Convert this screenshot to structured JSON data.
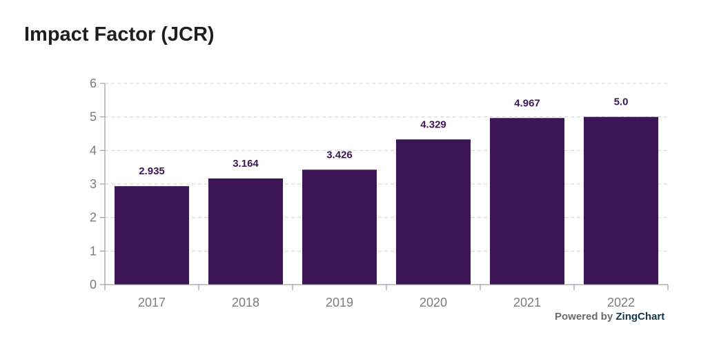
{
  "chart_data": {
    "type": "bar",
    "title": "Impact Factor (JCR)",
    "xlabel": "",
    "ylabel": "",
    "categories": [
      "2017",
      "2018",
      "2019",
      "2020",
      "2021",
      "2022"
    ],
    "values": [
      2.935,
      3.164,
      3.426,
      4.329,
      4.967,
      5.0
    ],
    "data_labels": [
      "2.935",
      "3.164",
      "3.426",
      "4.329",
      "4.967",
      "5.0"
    ],
    "y_ticks": [
      0,
      1,
      2,
      3,
      4,
      5,
      6
    ],
    "ylim": [
      0,
      6
    ],
    "grid": true,
    "legend": "none",
    "bar_color": "#3b1556",
    "label_color": "#3b1556"
  },
  "footer": {
    "powered_prefix": "Powered by",
    "powered_brand": "ZingChart"
  }
}
